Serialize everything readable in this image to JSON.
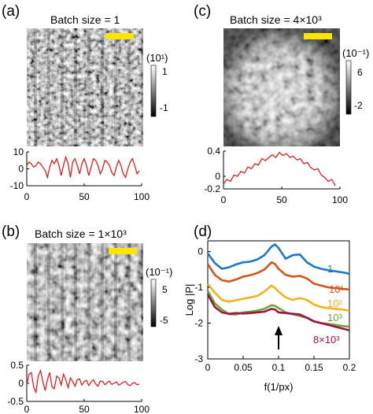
{
  "panels": {
    "a": {
      "label": "(a)",
      "title": "Batch size = 1",
      "colorbar": {
        "exponent": "(10¹)",
        "tick_high": "1",
        "tick_low": "-1"
      },
      "chart_data": {
        "type": "line",
        "color": "#e01010",
        "xlim": [
          0,
          100
        ],
        "ylim": [
          -10,
          10
        ],
        "xticks": [
          "0",
          "50",
          "100"
        ],
        "yticks": [
          "10",
          "0",
          "-10"
        ],
        "x": [
          0,
          2,
          4,
          6,
          8,
          10,
          12,
          14,
          16,
          18,
          20,
          22,
          24,
          26,
          28,
          30,
          32,
          34,
          36,
          38,
          40,
          42,
          44,
          46,
          48,
          50,
          52,
          54,
          56,
          58,
          60,
          62,
          64,
          66,
          68,
          70,
          72,
          74,
          76,
          78,
          80,
          82,
          84,
          86,
          88,
          90,
          92,
          94,
          96,
          98
        ],
        "y": [
          2,
          4,
          3,
          1,
          2,
          4,
          3,
          1,
          -1,
          -5,
          1,
          5,
          3,
          6,
          2,
          -4,
          2,
          7,
          3,
          -5,
          4,
          6,
          2,
          -3,
          3,
          6,
          2,
          -4,
          1,
          6,
          5,
          2,
          -3,
          0,
          5,
          4,
          2,
          -2,
          -4,
          1,
          5,
          2,
          -3,
          -5,
          0,
          4,
          6,
          2,
          -3,
          -1
        ]
      }
    },
    "b": {
      "label": "(b)",
      "title": "Batch size = 1×10³",
      "colorbar": {
        "exponent": "(10⁻¹)",
        "tick_high": "5",
        "tick_low": "-5"
      },
      "chart_data": {
        "type": "line",
        "color": "#e01010",
        "xlim": [
          0,
          100
        ],
        "ylim": [
          -0.5,
          0.5
        ],
        "xticks": [
          "0",
          "50",
          "100"
        ],
        "yticks": [
          "0.5",
          "0",
          "-0.5"
        ],
        "x": [
          0,
          2,
          4,
          6,
          8,
          10,
          12,
          14,
          16,
          18,
          20,
          22,
          24,
          26,
          28,
          30,
          32,
          34,
          36,
          38,
          40,
          42,
          44,
          46,
          48,
          50,
          52,
          54,
          56,
          58,
          60,
          62,
          64,
          66,
          68,
          70,
          72,
          74,
          76,
          78,
          80,
          82,
          84,
          86,
          88,
          90,
          92,
          94,
          96,
          98
        ],
        "y": [
          -0.05,
          0.25,
          0.3,
          -0.1,
          -0.25,
          0.2,
          0.35,
          0.05,
          -0.2,
          0.1,
          0.3,
          -0.1,
          -0.15,
          0.2,
          0.15,
          -0.05,
          0.25,
          0.1,
          -0.12,
          0.15,
          0.05,
          -0.08,
          0.1,
          0.12,
          -0.05,
          0.05,
          0.08,
          -0.06,
          0.04,
          0.1,
          -0.02,
          -0.08,
          0.06,
          0.05,
          -0.04,
          0.02,
          0.06,
          -0.03,
          0.0,
          0.04,
          -0.05,
          -0.02,
          0.03,
          0.05,
          -0.04,
          -0.06,
          0.0,
          0.02,
          -0.04,
          -0.02
        ]
      }
    },
    "c": {
      "label": "(c)",
      "title": "Batch size = 4×10³",
      "colorbar": {
        "exponent": "(10⁻¹)",
        "tick_high": "6",
        "tick_low": "-2"
      },
      "chart_data": {
        "type": "line",
        "color": "#e01010",
        "xlim": [
          0,
          100
        ],
        "ylim": [
          -0.2,
          0.4
        ],
        "xticks": [
          "0",
          "50",
          "100"
        ],
        "yticks": [
          "0.4",
          "0",
          "-0.2"
        ],
        "x": [
          0,
          3,
          6,
          9,
          12,
          15,
          18,
          21,
          24,
          27,
          30,
          33,
          36,
          39,
          42,
          45,
          48,
          51,
          54,
          57,
          60,
          63,
          66,
          69,
          72,
          75,
          78,
          81,
          84,
          87,
          90,
          93,
          96
        ],
        "y": [
          -0.12,
          -0.05,
          -0.08,
          0.02,
          0.0,
          0.08,
          0.05,
          0.15,
          0.12,
          0.2,
          0.18,
          0.28,
          0.25,
          0.3,
          0.34,
          0.3,
          0.38,
          0.33,
          0.36,
          0.3,
          0.32,
          0.26,
          0.28,
          0.2,
          0.22,
          0.14,
          0.1,
          0.12,
          0.02,
          -0.02,
          -0.08,
          -0.05,
          -0.15
        ]
      }
    },
    "d": {
      "label": "(d)",
      "chart_data": {
        "type": "line",
        "xlabel": "f(1/px)",
        "ylabel": "Log |P|",
        "xlim": [
          0,
          0.2
        ],
        "ylim": [
          -3,
          0.3
        ],
        "xticks": [
          "0",
          "0.05",
          "0.1",
          "0.15",
          "0.2"
        ],
        "yticks": [
          "0",
          "-1",
          "-2",
          "-3"
        ],
        "x": [
          0.0,
          0.01,
          0.02,
          0.03,
          0.04,
          0.05,
          0.06,
          0.07,
          0.08,
          0.09,
          0.095,
          0.1,
          0.11,
          0.12,
          0.13,
          0.14,
          0.15,
          0.16,
          0.17,
          0.18,
          0.19,
          0.2
        ],
        "series": [
          {
            "name": "1",
            "color": "#1f77c4",
            "values": [
              -0.05,
              -0.32,
              -0.48,
              -0.44,
              -0.36,
              -0.3,
              -0.28,
              -0.22,
              -0.1,
              0.14,
              0.2,
              0.1,
              -0.2,
              -0.1,
              -0.08,
              -0.3,
              -0.42,
              -0.48,
              -0.52,
              -0.55,
              -0.58,
              -0.62
            ]
          },
          {
            "name": "10¹",
            "color": "#d4541a",
            "values": [
              -0.35,
              -0.65,
              -0.8,
              -0.84,
              -0.78,
              -0.7,
              -0.66,
              -0.6,
              -0.5,
              -0.3,
              -0.35,
              -0.48,
              -0.65,
              -0.7,
              -0.68,
              -0.75,
              -0.9,
              -0.95,
              -1.0,
              -1.02,
              -1.04,
              -1.06
            ]
          },
          {
            "name": "10²",
            "color": "#f0b21e",
            "values": [
              -0.9,
              -1.15,
              -1.35,
              -1.4,
              -1.36,
              -1.32,
              -1.28,
              -1.24,
              -1.12,
              -0.95,
              -1.02,
              -1.12,
              -1.28,
              -1.35,
              -1.3,
              -1.35,
              -1.48,
              -1.55,
              -1.58,
              -1.6,
              -1.62,
              -1.65
            ]
          },
          {
            "name": "10³",
            "color": "#6aa832",
            "values": [
              -1.1,
              -1.45,
              -1.62,
              -1.75,
              -1.76,
              -1.7,
              -1.68,
              -1.65,
              -1.6,
              -1.5,
              -1.52,
              -1.58,
              -1.7,
              -1.75,
              -1.8,
              -1.85,
              -1.95,
              -2.0,
              -2.02,
              -2.05,
              -2.08,
              -2.1
            ]
          },
          {
            "name": "8×10³",
            "color": "#a0124a",
            "values": [
              -1.2,
              -1.55,
              -1.7,
              -1.74,
              -1.72,
              -1.73,
              -1.72,
              -1.7,
              -1.68,
              -1.6,
              -1.62,
              -1.7,
              -1.72,
              -1.74,
              -1.76,
              -1.85,
              -1.95,
              -2.0,
              -2.05,
              -2.1,
              -2.15,
              -2.2
            ]
          }
        ],
        "annotation": "arrow at f ≈ 0.1 pointing up"
      }
    }
  }
}
